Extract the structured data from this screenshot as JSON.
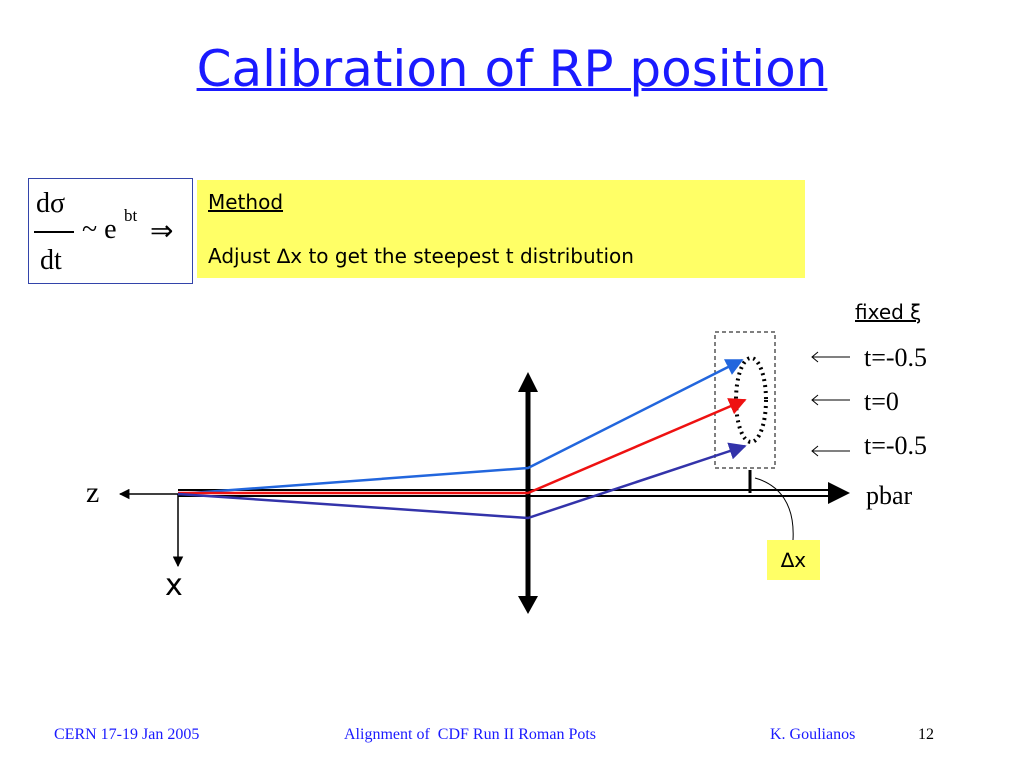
{
  "title": "Calibration of RP position",
  "formula": {
    "numerator": "dσ",
    "denominator": "dt",
    "relation": "~ e",
    "exponent": "bt",
    "implies": "⇒"
  },
  "method_box": {
    "heading": "Method",
    "text": "Adjust ∆x to get the steepest t distribution"
  },
  "diagram": {
    "fixed_label": "fixed ξ",
    "t_labels": [
      "t=-0.5",
      "t=0",
      "t=-0.5"
    ],
    "beam_label": "pbar",
    "z_label": "z",
    "x_label": "x",
    "offset_label": "∆x"
  },
  "footer": {
    "left": "CERN 17-19 Jan 2005",
    "center": "Alignment of  CDF Run II Roman Pots",
    "author": "K. Goulianos",
    "page": "12"
  }
}
